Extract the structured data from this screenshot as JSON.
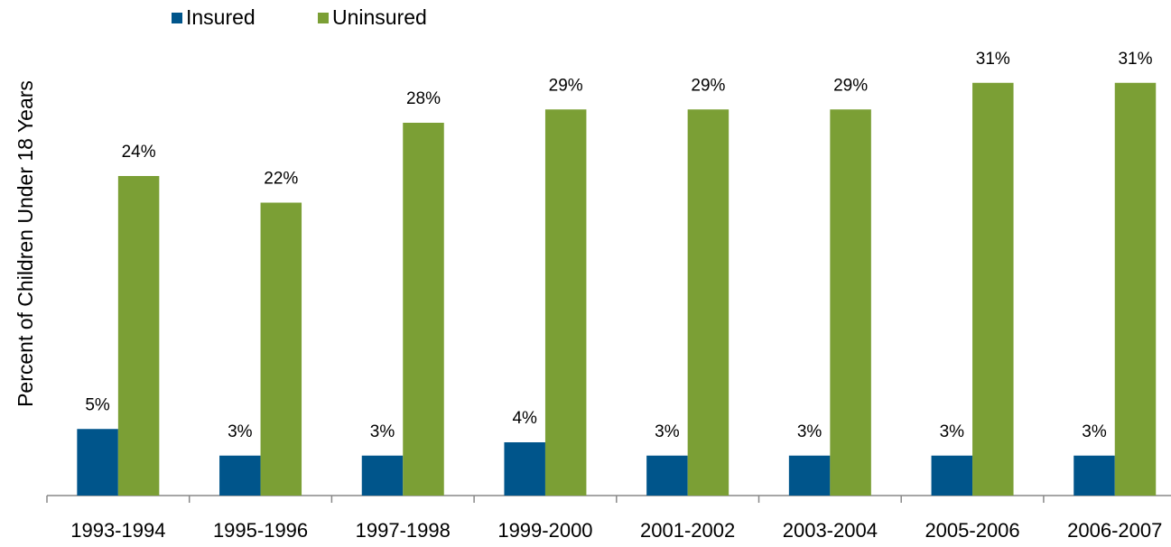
{
  "chart_data": {
    "type": "bar",
    "y_label": "Percent of Children Under 18 Years",
    "categories": [
      "1993-1994",
      "1995-1996",
      "1997-1998",
      "1999-2000",
      "2001-2002",
      "2003-2004",
      "2005-2006",
      "2006-2007"
    ],
    "series": [
      {
        "name": "Insured",
        "color": "#00558b",
        "values": [
          5,
          3,
          3,
          4,
          3,
          3,
          3,
          3
        ],
        "value_labels": [
          "5%",
          "3%",
          "3%",
          "4%",
          "3%",
          "3%",
          "3%",
          "3%"
        ]
      },
      {
        "name": "Uninsured",
        "color": "#7b9f35",
        "values": [
          24,
          22,
          28,
          29,
          29,
          29,
          31,
          31
        ],
        "value_labels": [
          "24%",
          "22%",
          "28%",
          "29%",
          "29%",
          "29%",
          "31%",
          "31%"
        ]
      }
    ],
    "legend": "top"
  }
}
